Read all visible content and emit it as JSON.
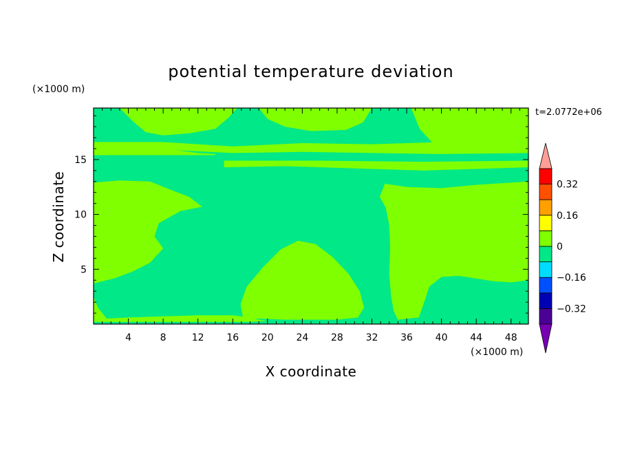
{
  "chart_data": {
    "type": "heatmap",
    "title": "potential temperature deviation",
    "xlabel": "X coordinate",
    "ylabel": "Z coordinate",
    "x_unit": "(×1000 m)",
    "y_unit": "(×1000 m)",
    "time_label": "t=2.0772e+06",
    "xlim": [
      0,
      50
    ],
    "ylim": [
      0,
      19.7
    ],
    "x_ticks": [
      4,
      8,
      12,
      16,
      20,
      24,
      28,
      32,
      36,
      40,
      44,
      48
    ],
    "y_ticks": [
      5,
      10,
      15
    ],
    "x_tick_labels": [
      "4",
      "8",
      "12",
      "16",
      "20",
      "24",
      "28",
      "32",
      "36",
      "40",
      "44",
      "48"
    ],
    "y_tick_labels": [
      "5",
      "10",
      "15"
    ],
    "background_level_color": "#00e887",
    "positive_level_color": "#7fff00",
    "colorbar": {
      "levels": [
        -0.4,
        -0.32,
        -0.24,
        -0.16,
        -0.08,
        0,
        0.08,
        0.16,
        0.24,
        0.32,
        0.4
      ],
      "colors": [
        "#4b0096",
        "#0000b4",
        "#0050ff",
        "#00dcff",
        "#00e887",
        "#7fff00",
        "#ffff00",
        "#ffa000",
        "#ff5000",
        "#ff0000"
      ],
      "under_color": "#7800b4",
      "over_color": "#ff9e96",
      "tick_values": [
        0.32,
        0.16,
        0,
        -0.16,
        -0.32
      ],
      "tick_labels": [
        "0.32",
        "0.16",
        "0",
        "−0.16",
        "−0.32"
      ]
    },
    "positive_regions": [
      {
        "name": "upper-left-region",
        "points": [
          [
            0,
            19.7
          ],
          [
            0,
            12.9
          ],
          [
            3,
            13.1
          ],
          [
            6.5,
            13.0
          ],
          [
            9,
            12.2
          ],
          [
            11,
            11.6
          ],
          [
            12.5,
            10.7
          ],
          [
            10,
            10.3
          ],
          [
            7.5,
            9.2
          ],
          [
            7,
            8.0
          ],
          [
            8,
            6.9
          ],
          [
            6.5,
            5.6
          ],
          [
            4.5,
            4.8
          ],
          [
            2.5,
            4.2
          ],
          [
            0,
            3.7
          ],
          [
            0,
            2.5
          ],
          [
            0.5,
            1.5
          ],
          [
            1.5,
            0.5
          ],
          [
            4,
            0.6
          ],
          [
            8,
            0.7
          ],
          [
            12,
            0.8
          ],
          [
            16,
            0.8
          ],
          [
            18,
            0.6
          ],
          [
            19,
            0.4
          ],
          [
            20,
            0.3
          ],
          [
            18,
            0.2
          ],
          [
            0,
            0.2
          ]
        ]
      },
      {
        "name": "central-dome",
        "points": [
          [
            17.2,
            0.5
          ],
          [
            16.9,
            1.8
          ],
          [
            17.6,
            3.4
          ],
          [
            19.5,
            5.2
          ],
          [
            21.5,
            6.8
          ],
          [
            23.5,
            7.6
          ],
          [
            25.5,
            7.3
          ],
          [
            27.5,
            6.1
          ],
          [
            29.3,
            4.6
          ],
          [
            30.6,
            3.0
          ],
          [
            31.1,
            1.5
          ],
          [
            30.4,
            0.6
          ],
          [
            28,
            0.4
          ],
          [
            22,
            0.4
          ],
          [
            19,
            0.5
          ]
        ]
      },
      {
        "name": "right-region",
        "points": [
          [
            50,
            19.7
          ],
          [
            50,
            16.2
          ],
          [
            48,
            15.9
          ],
          [
            45,
            15.8
          ],
          [
            42,
            16.0
          ],
          [
            39,
            16.5
          ],
          [
            37.5,
            17.8
          ],
          [
            36.5,
            19.7
          ]
        ]
      },
      {
        "name": "right-lower-region",
        "points": [
          [
            33.5,
            12.8
          ],
          [
            36,
            12.5
          ],
          [
            40,
            12.4
          ],
          [
            44,
            12.7
          ],
          [
            48,
            12.9
          ],
          [
            50,
            13.0
          ],
          [
            50,
            4.0
          ],
          [
            48,
            3.8
          ],
          [
            46,
            3.9
          ],
          [
            42,
            4.4
          ],
          [
            40,
            4.3
          ],
          [
            38.6,
            3.4
          ],
          [
            38.1,
            2.2
          ],
          [
            37.4,
            0.6
          ],
          [
            35,
            0.4
          ],
          [
            34.5,
            1.2
          ],
          [
            34.2,
            2.6
          ],
          [
            34.0,
            4.5
          ],
          [
            34.1,
            7.0
          ],
          [
            34.0,
            9.0
          ],
          [
            33.6,
            10.6
          ],
          [
            32.9,
            11.6
          ]
        ]
      },
      {
        "name": "top-band-left",
        "points": [
          [
            0,
            16.0
          ],
          [
            3,
            16.4
          ],
          [
            6,
            16.2
          ],
          [
            9,
            15.9
          ],
          [
            12,
            15.6
          ],
          [
            14,
            15.5
          ],
          [
            14,
            15.4
          ],
          [
            0,
            15.4
          ]
        ]
      },
      {
        "name": "top-band-center",
        "points": [
          [
            15,
            14.3
          ],
          [
            22,
            14.4
          ],
          [
            30,
            14.2
          ],
          [
            38,
            14.0
          ],
          [
            46,
            14.2
          ],
          [
            50,
            14.3
          ],
          [
            50,
            14.9
          ],
          [
            38,
            14.8
          ],
          [
            26,
            14.9
          ],
          [
            15,
            14.9
          ]
        ]
      },
      {
        "name": "stratosphere-patch-1",
        "points": [
          [
            3,
            19.7
          ],
          [
            4.5,
            18.5
          ],
          [
            6,
            17.5
          ],
          [
            8,
            17.2
          ],
          [
            11,
            17.4
          ],
          [
            14,
            17.8
          ],
          [
            15.5,
            18.8
          ],
          [
            16.5,
            19.7
          ]
        ]
      },
      {
        "name": "stratosphere-patch-2",
        "points": [
          [
            19,
            19.7
          ],
          [
            20,
            18.7
          ],
          [
            22,
            18.0
          ],
          [
            25,
            17.6
          ],
          [
            29,
            17.7
          ],
          [
            31,
            18.4
          ],
          [
            32,
            19.7
          ]
        ]
      },
      {
        "name": "stratosphere-band-mid",
        "points": [
          [
            0,
            15.8
          ],
          [
            8,
            15.9
          ],
          [
            16,
            15.6
          ],
          [
            24,
            15.7
          ],
          [
            32,
            15.6
          ],
          [
            40,
            15.5
          ],
          [
            50,
            15.6
          ],
          [
            50,
            16.2
          ],
          [
            40,
            16.6
          ],
          [
            32,
            16.4
          ],
          [
            24,
            16.5
          ],
          [
            16,
            16.2
          ],
          [
            8,
            16.6
          ],
          [
            0,
            16.6
          ]
        ]
      }
    ],
    "neutral_streaks": [
      {
        "name": "tropopause-streak-1",
        "points": [
          [
            0,
            15.2
          ],
          [
            10,
            15.15
          ],
          [
            20,
            15.25
          ],
          [
            30,
            15.2
          ],
          [
            40,
            15.15
          ],
          [
            50,
            15.2
          ],
          [
            50,
            15.0
          ],
          [
            40,
            14.95
          ],
          [
            30,
            15.0
          ],
          [
            20,
            15.05
          ],
          [
            10,
            14.95
          ],
          [
            0,
            15.0
          ]
        ]
      },
      {
        "name": "tropopause-streak-2",
        "points": [
          [
            12,
            13.6
          ],
          [
            20,
            13.8
          ],
          [
            30,
            13.5
          ],
          [
            40,
            13.4
          ],
          [
            50,
            13.6
          ],
          [
            50,
            13.3
          ],
          [
            40,
            13.1
          ],
          [
            30,
            13.2
          ],
          [
            20,
            13.4
          ],
          [
            12,
            13.3
          ]
        ]
      },
      {
        "name": "strat-streak-1",
        "points": [
          [
            8,
            17.0
          ],
          [
            14,
            16.7
          ],
          [
            20,
            17.2
          ],
          [
            26,
            16.9
          ],
          [
            32,
            17.1
          ],
          [
            38,
            16.8
          ],
          [
            38,
            16.6
          ],
          [
            32,
            16.8
          ],
          [
            26,
            16.6
          ],
          [
            20,
            16.9
          ],
          [
            14,
            16.4
          ],
          [
            8,
            16.7
          ]
        ]
      }
    ]
  }
}
